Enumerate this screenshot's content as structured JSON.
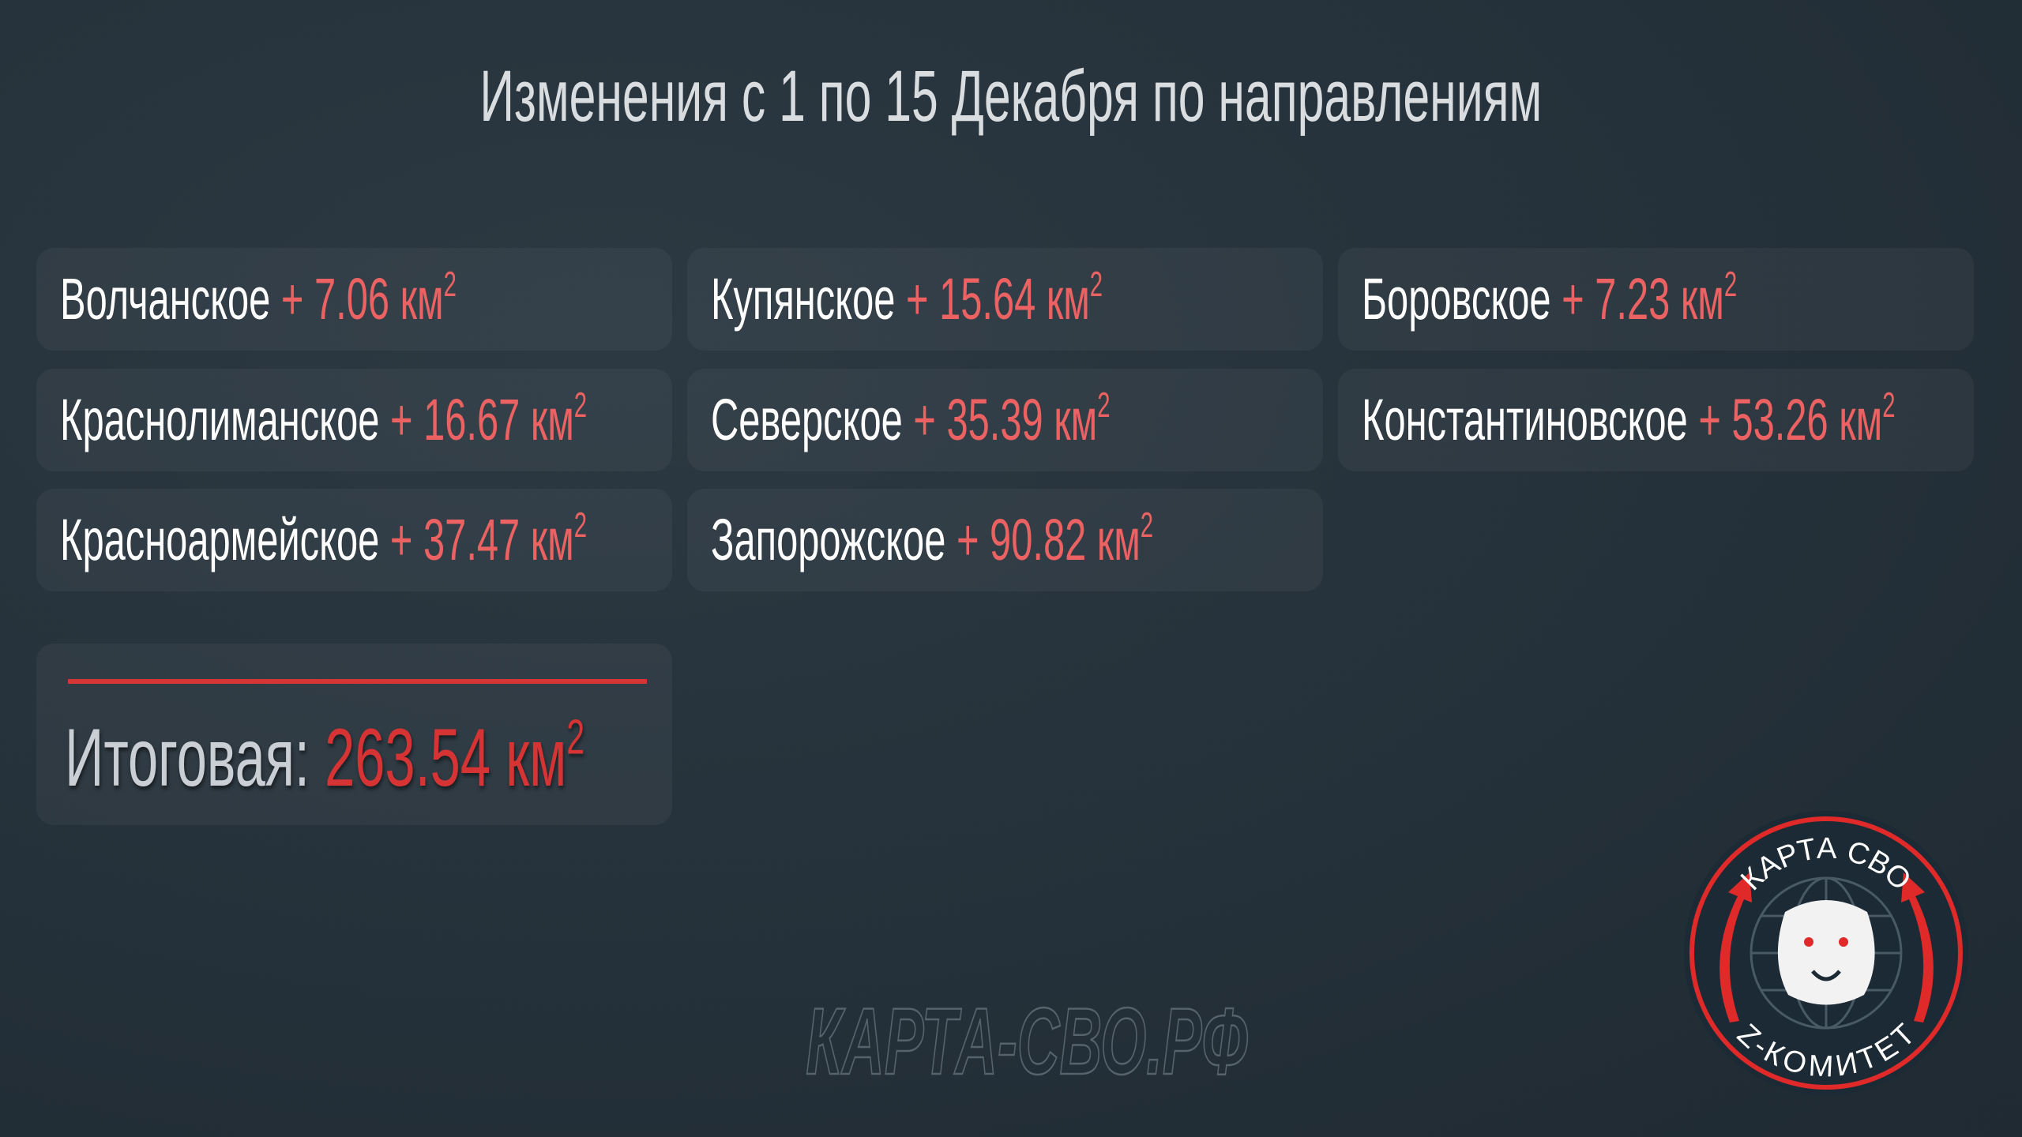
{
  "title": "Изменения с 1 по 15 Декабря по направлениям",
  "unit": "км",
  "unit_power": "2",
  "items": [
    {
      "name": "Волчанское",
      "value": "+ 7.06 км"
    },
    {
      "name": "Купянское",
      "value": "+ 15.64 км"
    },
    {
      "name": "Боровское",
      "value": "+ 7.23 км"
    },
    {
      "name": "Краснолиманское",
      "value": "+ 16.67 км"
    },
    {
      "name": "Северское",
      "value": "+ 35.39 км"
    },
    {
      "name": "Константиновское",
      "value": "+ 53.26 км"
    },
    {
      "name": "Красноармейское",
      "value": "+ 37.47 км"
    },
    {
      "name": "Запорожское",
      "value": "+ 90.82 км"
    }
  ],
  "total": {
    "label": "Итоговая:",
    "value": "263.54 км"
  },
  "watermark": "КАРТА-СВО.РФ",
  "logo": {
    "top_text": "КАРТА СВО",
    "bottom_text": "Z-КОМИТЕТ"
  },
  "colors": {
    "background": "#25313a",
    "accent_red": "#d63434",
    "value_red": "#ec6262"
  }
}
